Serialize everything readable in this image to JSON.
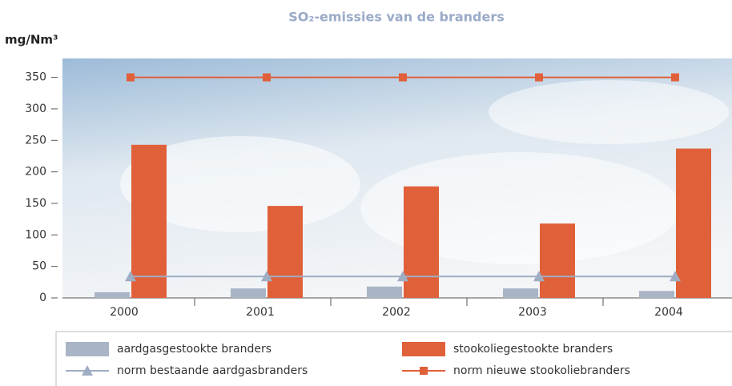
{
  "chart_data": {
    "type": "bar",
    "title": "SO₂-emissies van de branders",
    "y_label": "mg/Nm³",
    "categories": [
      "2000",
      "2001",
      "2002",
      "2003",
      "2004"
    ],
    "ylim": [
      0,
      380
    ],
    "yticks": [
      0,
      50,
      100,
      150,
      200,
      250,
      300,
      350
    ],
    "series": [
      {
        "name": "aardgasgestookte branders",
        "type": "bar",
        "color": "#a9b4c6",
        "values": [
          9,
          15,
          18,
          15,
          11
        ]
      },
      {
        "name": "stookoliegestookte branders",
        "type": "bar",
        "color": "#e0603a",
        "values": [
          243,
          146,
          177,
          118,
          237
        ]
      },
      {
        "name": "norm bestaande aardgasbranders",
        "type": "line",
        "marker": "triangle",
        "color": "#9fadc4",
        "values": [
          34,
          34,
          34,
          34,
          34
        ]
      },
      {
        "name": "norm nieuwe stookoliebranders",
        "type": "line",
        "marker": "square",
        "color": "#e0603a",
        "values": [
          350,
          350,
          350,
          350,
          350
        ]
      }
    ]
  }
}
